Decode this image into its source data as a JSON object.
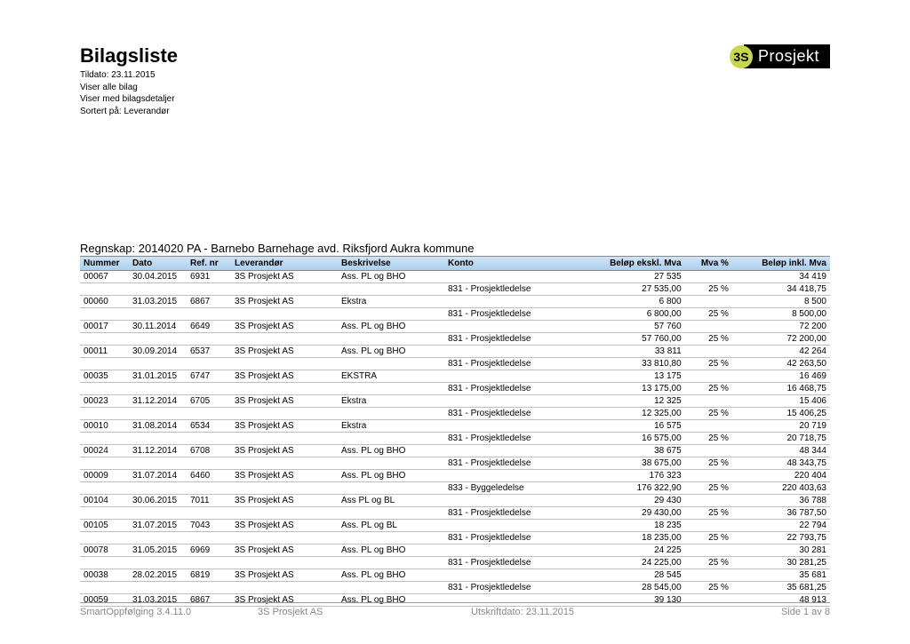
{
  "header": {
    "title": "Bilagsliste",
    "sub1": "Tildato: 23.11.2015",
    "sub2": "Viser alle bilag",
    "sub3": "Viser med bilagsdetaljer",
    "sub4": "Sortert på: Leverandør"
  },
  "logo": {
    "badge": "3S",
    "text": "Prosjekt"
  },
  "section_title": "Regnskap: 2014020 PA - Barnebo Barnehage avd. Riksfjord Aukra kommune",
  "columns": {
    "nummer": "Nummer",
    "dato": "Dato",
    "ref": "Ref. nr",
    "lev": "Leverandør",
    "beskr": "Beskrivelse",
    "konto": "Konto",
    "belopex": "Beløp ekskl. Mva",
    "mva": "Mva %",
    "belopinkl": "Beløp inkl. Mva"
  },
  "rows": [
    {
      "nummer": "00067",
      "dato": "30.04.2015",
      "ref": "6931",
      "lev": "3S Prosjekt AS",
      "beskr": "Ass. PL og BHO",
      "konto": "",
      "ex": "27 535",
      "mva": "",
      "inkl": "34 419"
    },
    {
      "nummer": "",
      "dato": "",
      "ref": "",
      "lev": "",
      "beskr": "",
      "konto": "831 - Prosjektledelse",
      "ex": "27 535,00",
      "mva": "25 %",
      "inkl": "34 418,75"
    },
    {
      "nummer": "00060",
      "dato": "31.03.2015",
      "ref": "6867",
      "lev": "3S Prosjekt AS",
      "beskr": "Ekstra",
      "konto": "",
      "ex": "6 800",
      "mva": "",
      "inkl": "8 500"
    },
    {
      "nummer": "",
      "dato": "",
      "ref": "",
      "lev": "",
      "beskr": "",
      "konto": "831 - Prosjektledelse",
      "ex": "6 800,00",
      "mva": "25 %",
      "inkl": "8 500,00"
    },
    {
      "nummer": "00017",
      "dato": "30.11.2014",
      "ref": "6649",
      "lev": "3S Prosjekt AS",
      "beskr": "Ass. PL og BHO",
      "konto": "",
      "ex": "57 760",
      "mva": "",
      "inkl": "72 200"
    },
    {
      "nummer": "",
      "dato": "",
      "ref": "",
      "lev": "",
      "beskr": "",
      "konto": "831 - Prosjektledelse",
      "ex": "57 760,00",
      "mva": "25 %",
      "inkl": "72 200,00"
    },
    {
      "nummer": "00011",
      "dato": "30.09.2014",
      "ref": "6537",
      "lev": "3S Prosjekt AS",
      "beskr": "Ass. PL og BHO",
      "konto": "",
      "ex": "33 811",
      "mva": "",
      "inkl": "42 264"
    },
    {
      "nummer": "",
      "dato": "",
      "ref": "",
      "lev": "",
      "beskr": "",
      "konto": "831 - Prosjektledelse",
      "ex": "33 810,80",
      "mva": "25 %",
      "inkl": "42 263,50"
    },
    {
      "nummer": "00035",
      "dato": "31.01.2015",
      "ref": "6747",
      "lev": "3S Prosjekt AS",
      "beskr": "EKSTRA",
      "konto": "",
      "ex": "13 175",
      "mva": "",
      "inkl": "16 469"
    },
    {
      "nummer": "",
      "dato": "",
      "ref": "",
      "lev": "",
      "beskr": "",
      "konto": "831 - Prosjektledelse",
      "ex": "13 175,00",
      "mva": "25 %",
      "inkl": "16 468,75"
    },
    {
      "nummer": "00023",
      "dato": "31.12.2014",
      "ref": "6705",
      "lev": "3S Prosjekt AS",
      "beskr": "Ekstra",
      "konto": "",
      "ex": "12 325",
      "mva": "",
      "inkl": "15 406"
    },
    {
      "nummer": "",
      "dato": "",
      "ref": "",
      "lev": "",
      "beskr": "",
      "konto": "831 - Prosjektledelse",
      "ex": "12 325,00",
      "mva": "25 %",
      "inkl": "15 406,25"
    },
    {
      "nummer": "00010",
      "dato": "31.08.2014",
      "ref": "6534",
      "lev": "3S Prosjekt AS",
      "beskr": "Ekstra",
      "konto": "",
      "ex": "16 575",
      "mva": "",
      "inkl": "20 719"
    },
    {
      "nummer": "",
      "dato": "",
      "ref": "",
      "lev": "",
      "beskr": "",
      "konto": "831 - Prosjektledelse",
      "ex": "16 575,00",
      "mva": "25 %",
      "inkl": "20 718,75"
    },
    {
      "nummer": "00024",
      "dato": "31.12.2014",
      "ref": "6708",
      "lev": "3S Prosjekt AS",
      "beskr": "Ass. PL og BHO",
      "konto": "",
      "ex": "38 675",
      "mva": "",
      "inkl": "48 344"
    },
    {
      "nummer": "",
      "dato": "",
      "ref": "",
      "lev": "",
      "beskr": "",
      "konto": "831 - Prosjektledelse",
      "ex": "38 675,00",
      "mva": "25 %",
      "inkl": "48 343,75"
    },
    {
      "nummer": "00009",
      "dato": "31.07.2014",
      "ref": "6460",
      "lev": "3S Prosjekt AS",
      "beskr": "Ass. PL og BHO",
      "konto": "",
      "ex": "176 323",
      "mva": "",
      "inkl": "220 404"
    },
    {
      "nummer": "",
      "dato": "",
      "ref": "",
      "lev": "",
      "beskr": "",
      "konto": "833 - Byggeledelse",
      "ex": "176 322,90",
      "mva": "25 %",
      "inkl": "220 403,63"
    },
    {
      "nummer": "00104",
      "dato": "30.06.2015",
      "ref": "7011",
      "lev": "3S Prosjekt AS",
      "beskr": "Ass PL og BL",
      "konto": "",
      "ex": "29 430",
      "mva": "",
      "inkl": "36 788"
    },
    {
      "nummer": "",
      "dato": "",
      "ref": "",
      "lev": "",
      "beskr": "",
      "konto": "831 - Prosjektledelse",
      "ex": "29 430,00",
      "mva": "25 %",
      "inkl": "36 787,50"
    },
    {
      "nummer": "00105",
      "dato": "31.07.2015",
      "ref": "7043",
      "lev": "3S Prosjekt AS",
      "beskr": "Ass. PL og BL",
      "konto": "",
      "ex": "18 235",
      "mva": "",
      "inkl": "22 794"
    },
    {
      "nummer": "",
      "dato": "",
      "ref": "",
      "lev": "",
      "beskr": "",
      "konto": "831 - Prosjektledelse",
      "ex": "18 235,00",
      "mva": "25 %",
      "inkl": "22 793,75"
    },
    {
      "nummer": "00078",
      "dato": "31.05.2015",
      "ref": "6969",
      "lev": "3S Prosjekt AS",
      "beskr": "Ass. PL og BHO",
      "konto": "",
      "ex": "24 225",
      "mva": "",
      "inkl": "30 281"
    },
    {
      "nummer": "",
      "dato": "",
      "ref": "",
      "lev": "",
      "beskr": "",
      "konto": "831 - Prosjektledelse",
      "ex": "24 225,00",
      "mva": "25 %",
      "inkl": "30 281,25"
    },
    {
      "nummer": "00038",
      "dato": "28.02.2015",
      "ref": "6819",
      "lev": "3S Prosjekt AS",
      "beskr": "Ass. PL og BHO",
      "konto": "",
      "ex": "28 545",
      "mva": "",
      "inkl": "35 681"
    },
    {
      "nummer": "",
      "dato": "",
      "ref": "",
      "lev": "",
      "beskr": "",
      "konto": "831 - Prosjektledelse",
      "ex": "28 545,00",
      "mva": "25 %",
      "inkl": "35 681,25"
    },
    {
      "nummer": "00059",
      "dato": "31.03.2015",
      "ref": "6867",
      "lev": "3S Prosjekt AS",
      "beskr": "Ass. PL og BHO",
      "konto": "",
      "ex": "39 130",
      "mva": "",
      "inkl": "48 913"
    }
  ],
  "footer": {
    "left": "SmartOppfølging 3.4.11.0",
    "mid": "3S Prosjekt AS",
    "mid2": "Utskriftdato: 23.11.2015",
    "right": "Side 1 av 8"
  }
}
